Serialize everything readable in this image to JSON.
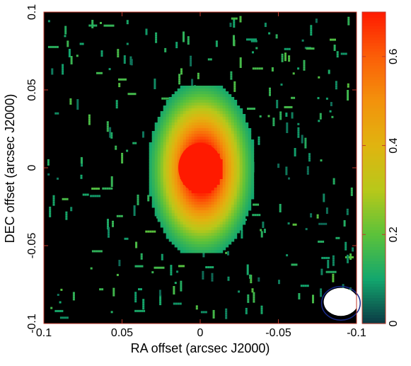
{
  "chart_data": {
    "type": "heatmap",
    "xlabel": "RA offset (arcsec J2000)",
    "ylabel": "DEC offset (arcsec J2000)",
    "xlim": [
      0.1,
      -0.1
    ],
    "ylim": [
      -0.1,
      0.1
    ],
    "x_ticks": [
      0.1,
      0.05,
      0,
      -0.05,
      -0.1
    ],
    "x_tick_labels": [
      "0.1",
      "0.05",
      "0",
      "-0.05",
      "-0.1"
    ],
    "y_ticks": [
      -0.1,
      -0.05,
      0,
      0.05,
      0.1
    ],
    "y_tick_labels": [
      "-0.1",
      "-0.05",
      "0",
      "0.05",
      "0.1"
    ],
    "colorbar": {
      "range": [
        0,
        0.7
      ],
      "ticks": [
        0,
        0.2,
        0.4,
        0.6
      ],
      "tick_labels": [
        "0",
        "0.2",
        "0.4",
        "0.6"
      ],
      "colors": [
        "#0b3a44",
        "#13a76e",
        "#5cc23a",
        "#b8c81a",
        "#e0b410",
        "#f3920c",
        "#fb5e08",
        "#ff1a00"
      ]
    },
    "source": {
      "center": [
        0.0,
        0.0
      ],
      "peak": 0.7,
      "core_semi_axes": [
        0.014,
        0.016
      ],
      "envelope_semi_axes": [
        0.03,
        0.05
      ]
    },
    "beam": {
      "center": [
        -0.09,
        -0.087
      ],
      "major": 0.011,
      "minor": 0.009,
      "color": "#ffffff",
      "outline": "#1a2a8a"
    },
    "grid": false,
    "background_color": "#000000",
    "noise_color": "#1f9e78"
  }
}
